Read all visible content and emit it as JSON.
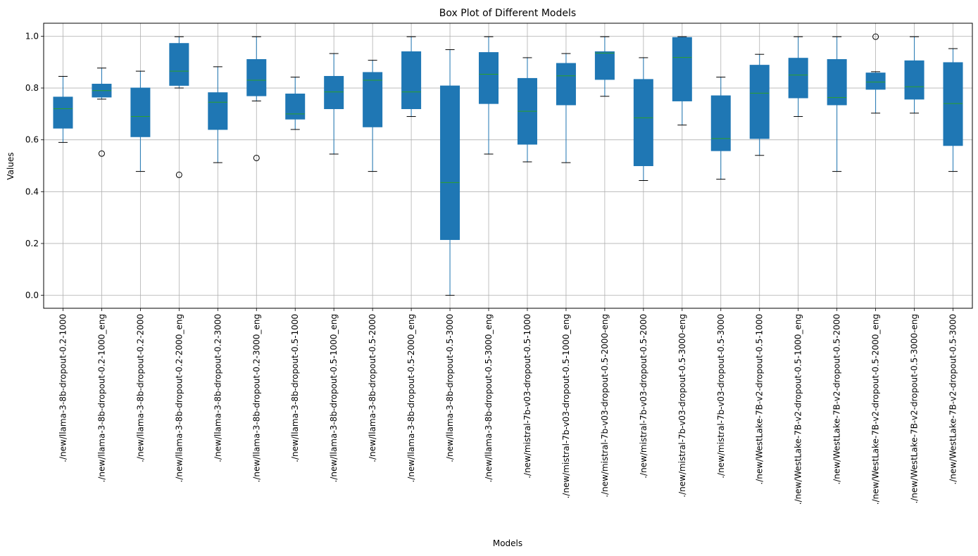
{
  "chart_data": {
    "type": "box",
    "title": "Box Plot of Different Models",
    "xlabel": "Models",
    "ylabel": "Values",
    "ylim": [
      -0.05,
      1.05
    ],
    "yticks": [
      0.0,
      0.2,
      0.4,
      0.6,
      0.8,
      1.0
    ],
    "ytick_labels": [
      "0.0",
      "0.2",
      "0.4",
      "0.6",
      "0.8",
      "1.0"
    ],
    "grid": true,
    "colors": {
      "box": "#1f77b4",
      "median": "#2ca02c",
      "whisker": "#1f77b4",
      "grid": "#b0b0b0"
    },
    "categories": [
      "./new/llama-3-8b-dropout-0.2-1000",
      "./new/llama-3-8b-dropout-0.2-1000_eng",
      "./new/llama-3-8b-dropout-0.2-2000",
      "./new/llama-3-8b-dropout-0.2-2000_eng",
      "./new/llama-3-8b-dropout-0.2-3000",
      "./new/llama-3-8b-dropout-0.2-3000_eng",
      "./new/llama-3-8b-dropout-0.5-1000",
      "./new/llama-3-8b-dropout-0.5-1000_eng",
      "./new/llama-3-8b-dropout-0.5-2000",
      "./new/llama-3-8b-dropout-0.5-2000_eng",
      "./new/llama-3-8b-dropout-0.5-3000",
      "./new/llama-3-8b-dropout-0.5-3000_eng",
      "./new/mistral-7b-v03-dropout-0.5-1000",
      "./new/mistral-7b-v03-dropout-0.5-1000_eng",
      "./new/mistral-7b-v03-dropout-0.5-2000-eng",
      "./new/mistral-7b-v03-dropout-0.5-2000",
      "./new/mistral-7b-v03-dropout-0.5-3000-eng",
      "./new/mistral-7b-v03-dropout-0.5-3000",
      "./new/WestLake-7B-v2-dropout-0.5-1000",
      "./new/WestLake-7B-v2-dropout-0.5-1000_eng",
      "./new/WestLake-7B-v2-dropout-0.5-2000",
      "./new/WestLake-7B-v2-dropout-0.5-2000_eng",
      "./new/WestLake-7B-v2-dropout-0.5-3000-eng",
      "./new/WestLake-7B-v2-dropout-0.5-3000"
    ],
    "boxes": [
      {
        "wlo": 0.59,
        "q1": 0.645,
        "med": 0.72,
        "q3": 0.765,
        "whi": 0.845,
        "fliers": []
      },
      {
        "wlo": 0.757,
        "q1": 0.765,
        "med": 0.79,
        "q3": 0.815,
        "whi": 0.877,
        "fliers": [
          0.547
        ]
      },
      {
        "wlo": 0.478,
        "q1": 0.612,
        "med": 0.69,
        "q3": 0.8,
        "whi": 0.865,
        "fliers": []
      },
      {
        "wlo": 0.8,
        "q1": 0.81,
        "med": 0.865,
        "q3": 0.972,
        "whi": 0.998,
        "fliers": [
          0.465
        ]
      },
      {
        "wlo": 0.512,
        "q1": 0.64,
        "med": 0.745,
        "q3": 0.782,
        "whi": 0.882,
        "fliers": []
      },
      {
        "wlo": 0.75,
        "q1": 0.77,
        "med": 0.83,
        "q3": 0.91,
        "whi": 0.998,
        "fliers": [
          0.53
        ]
      },
      {
        "wlo": 0.64,
        "q1": 0.68,
        "med": 0.7,
        "q3": 0.777,
        "whi": 0.842,
        "fliers": []
      },
      {
        "wlo": 0.545,
        "q1": 0.72,
        "med": 0.785,
        "q3": 0.845,
        "whi": 0.933,
        "fliers": []
      },
      {
        "wlo": 0.478,
        "q1": 0.65,
        "med": 0.83,
        "q3": 0.86,
        "whi": 0.907,
        "fliers": []
      },
      {
        "wlo": 0.69,
        "q1": 0.72,
        "med": 0.785,
        "q3": 0.94,
        "whi": 0.998,
        "fliers": []
      },
      {
        "wlo": 0.0,
        "q1": 0.215,
        "med": 0.435,
        "q3": 0.808,
        "whi": 0.948,
        "fliers": []
      },
      {
        "wlo": 0.545,
        "q1": 0.74,
        "med": 0.853,
        "q3": 0.937,
        "whi": 0.998,
        "fliers": []
      },
      {
        "wlo": 0.515,
        "q1": 0.583,
        "med": 0.71,
        "q3": 0.837,
        "whi": 0.917,
        "fliers": []
      },
      {
        "wlo": 0.512,
        "q1": 0.735,
        "med": 0.847,
        "q3": 0.895,
        "whi": 0.933,
        "fliers": []
      },
      {
        "wlo": 0.768,
        "q1": 0.833,
        "med": 0.935,
        "q3": 0.94,
        "whi": 0.998,
        "fliers": []
      },
      {
        "wlo": 0.443,
        "q1": 0.5,
        "med": 0.685,
        "q3": 0.833,
        "whi": 0.917,
        "fliers": []
      },
      {
        "wlo": 0.657,
        "q1": 0.75,
        "med": 0.918,
        "q3": 0.995,
        "whi": 0.998,
        "fliers": []
      },
      {
        "wlo": 0.448,
        "q1": 0.558,
        "med": 0.605,
        "q3": 0.77,
        "whi": 0.842,
        "fliers": []
      },
      {
        "wlo": 0.54,
        "q1": 0.605,
        "med": 0.78,
        "q3": 0.888,
        "whi": 0.93,
        "fliers": []
      },
      {
        "wlo": 0.69,
        "q1": 0.762,
        "med": 0.85,
        "q3": 0.915,
        "whi": 0.998,
        "fliers": []
      },
      {
        "wlo": 0.478,
        "q1": 0.735,
        "med": 0.763,
        "q3": 0.91,
        "whi": 0.998,
        "fliers": []
      },
      {
        "wlo": 0.703,
        "q1": 0.795,
        "med": 0.823,
        "q3": 0.858,
        "whi": 0.863,
        "fliers": [
          0.998
        ]
      },
      {
        "wlo": 0.703,
        "q1": 0.757,
        "med": 0.805,
        "q3": 0.905,
        "whi": 0.998,
        "fliers": []
      },
      {
        "wlo": 0.478,
        "q1": 0.578,
        "med": 0.74,
        "q3": 0.898,
        "whi": 0.952,
        "fliers": []
      }
    ]
  }
}
